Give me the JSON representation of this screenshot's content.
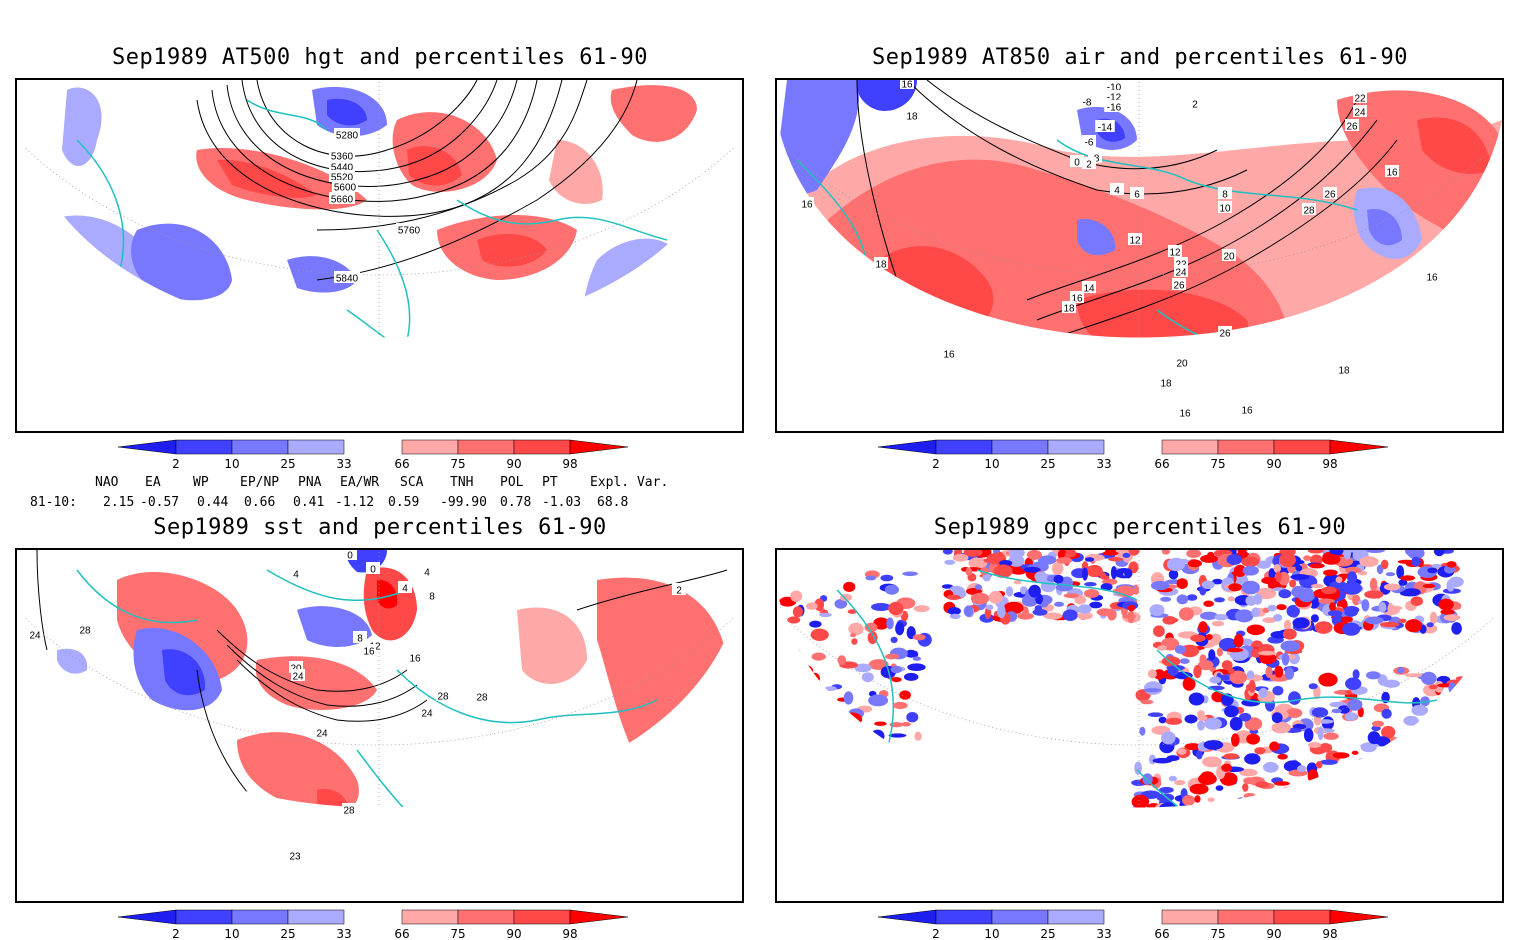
{
  "colors": {
    "blue_dark": "#1e1ef0",
    "blue_mid": "#4040ff",
    "blue_light": "#7878ff",
    "blue_pale": "#aaaaff",
    "red_pale": "#ffa8a8",
    "red_light": "#ff7070",
    "red_mid": "#ff4848",
    "red_dark": "#ff0000",
    "coast": "#20c0c0",
    "contour": "#000000",
    "grid": "#999999"
  },
  "legend": {
    "ticks": [
      "2",
      "10",
      "25",
      "33",
      "66",
      "75",
      "90",
      "98"
    ]
  },
  "panels": [
    {
      "id": "hgt",
      "title": "Sep1989 AT500 hgt and percentiles 61-90",
      "contour_labels": [
        "5280",
        "5360",
        "5440",
        "5520",
        "5600",
        "5660",
        "5760",
        "5840"
      ]
    },
    {
      "id": "air",
      "title": "Sep1989 AT850 air and percentiles 61-90",
      "contour_labels": [
        "16",
        "-10",
        "-12",
        "-16",
        "-8",
        "-14",
        "-6",
        "-8",
        "0",
        "2",
        "2",
        "22",
        "24",
        "26",
        "18",
        "16",
        "4",
        "6",
        "8",
        "10",
        "12",
        "26",
        "28",
        "16",
        "12",
        "20",
        "22",
        "24",
        "26",
        "14",
        "16",
        "18",
        "18",
        "26",
        "20",
        "16",
        "18",
        "16",
        "16",
        "18",
        "16"
      ]
    },
    {
      "id": "sst",
      "title": "Sep1989 sst and percentiles 61-90",
      "contour_labels": [
        "24",
        "28",
        "0",
        "0",
        "4",
        "4",
        "4",
        "8",
        "8",
        "12",
        "16",
        "16",
        "20",
        "24",
        "24",
        "24",
        "28",
        "28",
        "28",
        "23",
        "2"
      ]
    },
    {
      "id": "gpcc",
      "title": "Sep1989 gpcc percentiles 61-90",
      "contour_labels": []
    }
  ],
  "indices": {
    "names": [
      "NAO",
      "EA",
      "WP",
      "EP/NP",
      "PNA",
      "EA/WR",
      "SCA",
      "TNH",
      "POL",
      "PT",
      "Expl. Var."
    ],
    "row_label": "81-10:",
    "values": [
      "2.15",
      "-0.57",
      "0.44",
      "0.66",
      "0.41",
      "-1.12",
      "0.59",
      "-99.90",
      "0.78",
      "-1.03",
      "68.8"
    ]
  }
}
